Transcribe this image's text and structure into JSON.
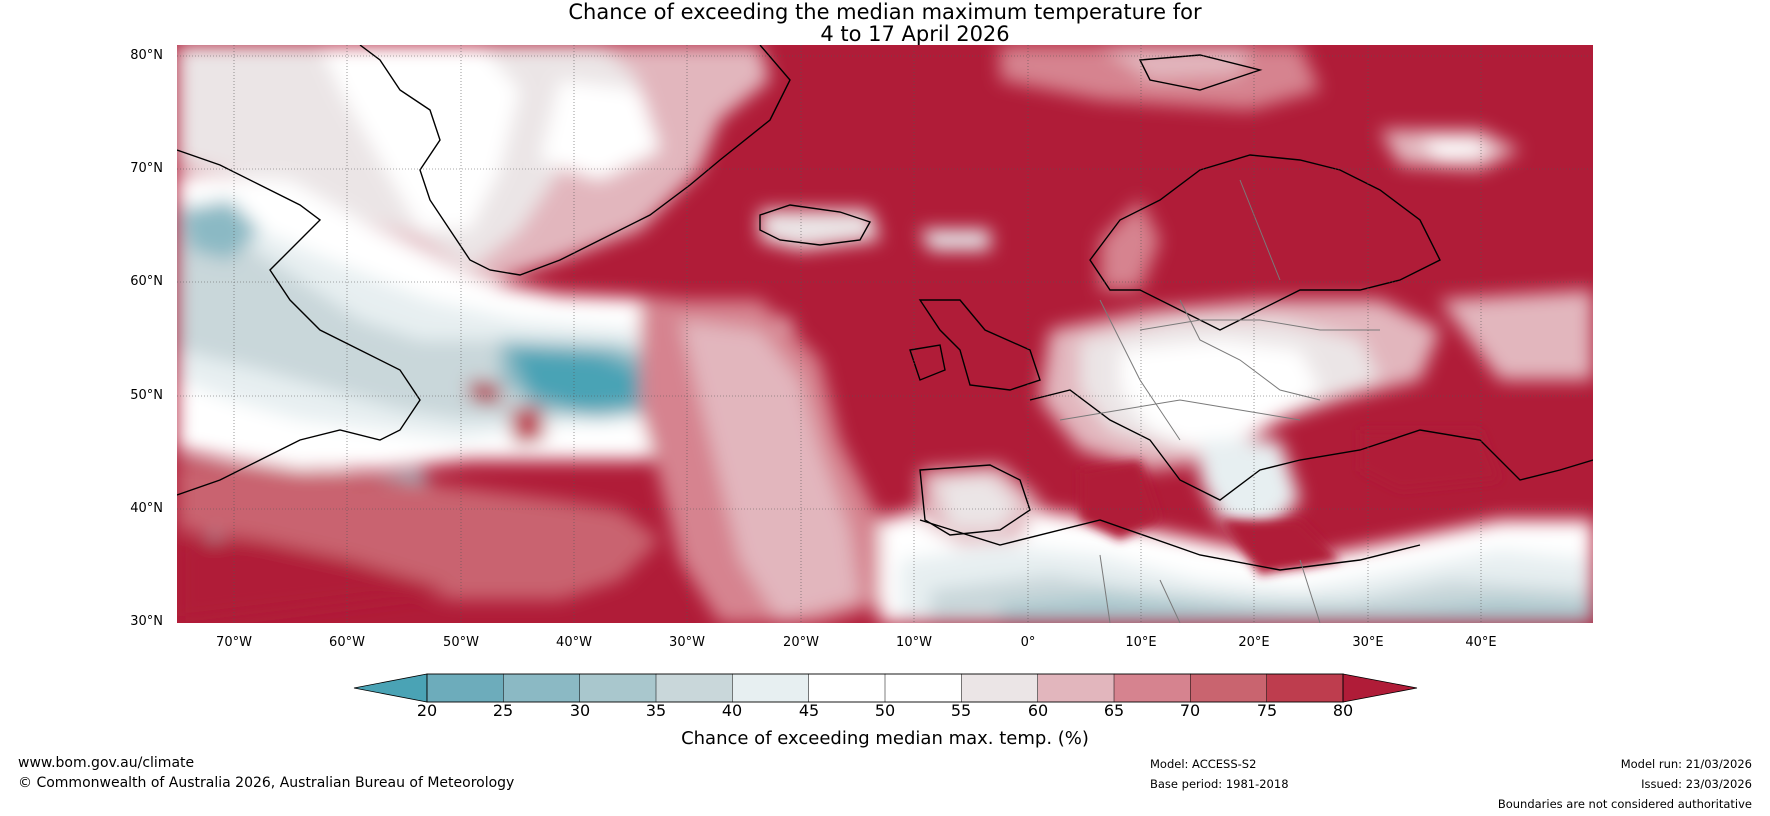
{
  "title": {
    "line1": "Chance of exceeding the median maximum temperature for",
    "line2": "4 to 17 April 2026"
  },
  "map": {
    "lat_labels": [
      "80°N",
      "70°N",
      "60°N",
      "50°N",
      "40°N",
      "30°N"
    ],
    "lon_labels": [
      "70°W",
      "60°W",
      "50°W",
      "40°W",
      "30°W",
      "20°W",
      "10°W",
      "0°",
      "10°E",
      "20°E",
      "30°E",
      "40°E"
    ],
    "lat_range": [
      30,
      80
    ],
    "lon_range": [
      -75,
      50
    ]
  },
  "colorbar": {
    "ticks": [
      "20",
      "25",
      "30",
      "35",
      "40",
      "45",
      "50",
      "55",
      "60",
      "65",
      "70",
      "75",
      "80"
    ],
    "bins": [
      {
        "color": "#4aa3b5"
      },
      {
        "color": "#6dacbb"
      },
      {
        "color": "#8bb9c4"
      },
      {
        "color": "#a9c7cd"
      },
      {
        "color": "#c9d7da"
      },
      {
        "color": "#e7eff1"
      },
      {
        "color": "#ffffff"
      },
      {
        "color": "#ffffff"
      },
      {
        "color": "#ebe5e6"
      },
      {
        "color": "#e2b6bd"
      },
      {
        "color": "#d6838f"
      },
      {
        "color": "#c9646f"
      },
      {
        "color": "#be3d4e"
      },
      {
        "color": "#b01c38"
      }
    ],
    "label": "Chance of exceeding median max. temp. (%)"
  },
  "footer": {
    "website": "www.bom.gov.au/climate",
    "copyright": "© Commonwealth of Australia 2026, Australian Bureau of Meteorology",
    "model": "Model: ACCESS-S2",
    "base_period": "Base period: 1981-2018",
    "model_run": "Model run: 21/03/2026",
    "issued": "Issued: 23/03/2026",
    "disclaimer": "Boundaries are not considered authoritative"
  }
}
